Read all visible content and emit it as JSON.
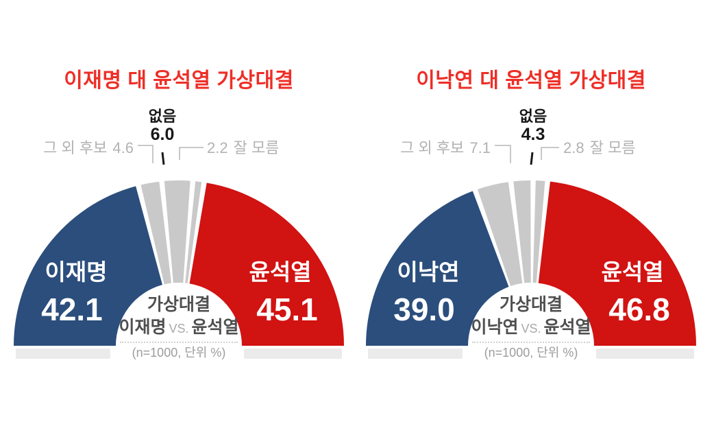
{
  "colors": {
    "blue": "#2B4E7C",
    "red": "#D11312",
    "gray_segment": "#C9C9C9",
    "title_red": "#EE2E26",
    "label_gray": "#B2B2B2",
    "connector_gray": "#C8C8C8",
    "tick_black": "#1A1A1A",
    "shadow": "#EBEBEB",
    "center_text_dark": "#4F4F4F",
    "center_text_light": "#9C9C9C"
  },
  "chart_data": [
    {
      "type": "half-donut",
      "title": "이재명 대 윤석열 가상대결",
      "unit_note": "(n=1000, 단위 %)",
      "center": {
        "line1": "가상대결",
        "left": "이재명",
        "vs": "VS.",
        "right": "윤석열"
      },
      "total": 100,
      "segments": [
        {
          "id": "lee-jae-myung",
          "name": "이재명",
          "value": 42.1,
          "label": "42.1",
          "color": "blue"
        },
        {
          "id": "other-candidates",
          "name": "그 외 후보",
          "value": 4.6,
          "label": "4.6",
          "color": "gray"
        },
        {
          "id": "none",
          "name": "없음",
          "value": 6.0,
          "label": "6.0",
          "color": "gray"
        },
        {
          "id": "dont-know",
          "name": "잘 모름",
          "value": 2.2,
          "label": "2.2",
          "color": "gray"
        },
        {
          "id": "yoon-seok-youl",
          "name": "윤석열",
          "value": 45.1,
          "label": "45.1",
          "color": "red"
        }
      ]
    },
    {
      "type": "half-donut",
      "title": "이낙연 대 윤석열 가상대결",
      "unit_note": "(n=1000, 단위 %)",
      "center": {
        "line1": "가상대결",
        "left": "이낙연",
        "vs": "VS.",
        "right": "윤석열"
      },
      "total": 100,
      "segments": [
        {
          "id": "lee-nak-yeon",
          "name": "이낙연",
          "value": 39.0,
          "label": "39.0",
          "color": "blue"
        },
        {
          "id": "other-candidates",
          "name": "그 외 후보",
          "value": 7.1,
          "label": "7.1",
          "color": "gray"
        },
        {
          "id": "none",
          "name": "없음",
          "value": 4.3,
          "label": "4.3",
          "color": "gray"
        },
        {
          "id": "dont-know",
          "name": "잘 모름",
          "value": 2.8,
          "label": "2.8",
          "color": "gray"
        },
        {
          "id": "yoon-seok-youl",
          "name": "윤석열",
          "value": 46.8,
          "label": "46.8",
          "color": "red"
        }
      ]
    }
  ]
}
